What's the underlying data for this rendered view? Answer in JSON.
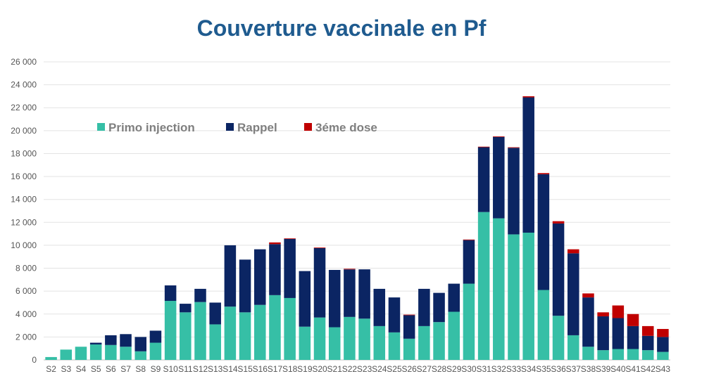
{
  "chart_data": {
    "type": "bar",
    "stacked": true,
    "title": "Couverture vaccinale en Pf",
    "xlabel": "",
    "ylabel": "",
    "ylim": [
      0,
      26000
    ],
    "y_ticks": [
      "0",
      "2 000",
      "4 000",
      "6 000",
      "8 000",
      "10 000",
      "12 000",
      "14 000",
      "16 000",
      "18 000",
      "20 000",
      "22 000",
      "24 000",
      "26 000"
    ],
    "y_tick_values": [
      0,
      2000,
      4000,
      6000,
      8000,
      10000,
      12000,
      14000,
      16000,
      18000,
      20000,
      22000,
      24000,
      26000
    ],
    "grid": true,
    "legend_position": "top-left",
    "categories": [
      "S2",
      "S3",
      "S4",
      "S5",
      "S6",
      "S7",
      "S8",
      "S9",
      "S10",
      "S11",
      "S12",
      "S13",
      "S14",
      "S15",
      "S16",
      "S17",
      "S18",
      "S19",
      "S20",
      "S21",
      "S22",
      "S23",
      "S24",
      "S25",
      "S26",
      "S27",
      "S28",
      "S29",
      "S30",
      "S31",
      "S32",
      "S33",
      "S34",
      "S35",
      "S36",
      "S37",
      "S38",
      "S39",
      "S40",
      "S41",
      "S42",
      "S43"
    ],
    "series": [
      {
        "name": "Primo injection",
        "color": "#36bfa6",
        "values": [
          250,
          900,
          1150,
          1350,
          1300,
          1150,
          750,
          1500,
          5150,
          4150,
          5050,
          3100,
          4650,
          4150,
          4800,
          5650,
          5400,
          2900,
          3700,
          2850,
          3750,
          3600,
          2950,
          2400,
          1850,
          2950,
          3300,
          4200,
          6650,
          12900,
          12350,
          10950,
          11100,
          6100,
          3850,
          2150,
          1150,
          850,
          950,
          950,
          850,
          700
        ]
      },
      {
        "name": "Rappel",
        "color": "#0b2563",
        "values": [
          0,
          0,
          0,
          150,
          850,
          1100,
          1250,
          1050,
          1350,
          750,
          1150,
          1900,
          5350,
          4600,
          4850,
          4450,
          5150,
          4850,
          6050,
          5000,
          4150,
          4300,
          3250,
          3050,
          2050,
          3250,
          2550,
          2450,
          3800,
          5650,
          7100,
          7550,
          11800,
          10100,
          8050,
          7150,
          4300,
          2950,
          2700,
          2000,
          1250,
          1300
        ]
      },
      {
        "name": "3éme dose",
        "color": "#c00000",
        "values": [
          0,
          0,
          0,
          0,
          0,
          0,
          0,
          0,
          0,
          0,
          0,
          0,
          0,
          0,
          0,
          150,
          50,
          0,
          50,
          0,
          50,
          0,
          0,
          0,
          50,
          0,
          0,
          0,
          50,
          50,
          50,
          50,
          100,
          100,
          200,
          350,
          350,
          350,
          1100,
          1050,
          850,
          700
        ]
      }
    ]
  }
}
